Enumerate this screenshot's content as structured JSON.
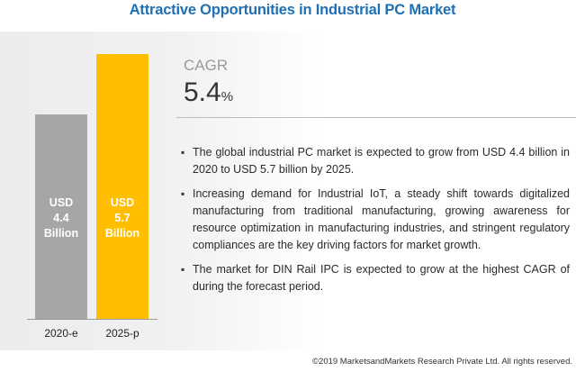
{
  "title": "Attractive Opportunities in Industrial PC Market",
  "cagr": {
    "label": "CAGR",
    "value": "5.4",
    "unit": "%"
  },
  "bullets": [
    "The global industrial PC market is expected to grow from USD 4.4 billion in 2020 to USD 5.7 billion by 2025.",
    "Increasing demand for Industrial IoT, a steady shift towards digitalized manufacturing from traditional manufacturing, growing awareness for resource optimization in manufacturing industries, and stringent regulatory compliances are the key driving factors for market growth.",
    "The market for DIN Rail IPC is expected to grow at the highest CAGR of during the forecast period."
  ],
  "copyright": "©2019 MarketsandMarkets Research Private Ltd. All rights reserved.",
  "colors": {
    "title": "#1f6fb2",
    "bar_2020": "#a6a6a6",
    "bar_2025": "#ffbf00"
  },
  "chart_data": {
    "type": "bar",
    "categories": [
      "2020-e",
      "2025-p"
    ],
    "values": [
      4.4,
      5.7
    ],
    "data_labels": [
      [
        "USD",
        "4.4",
        "Billion"
      ],
      [
        "USD",
        "5.7",
        "Billion"
      ]
    ],
    "unit": "USD Billion",
    "ylim": [
      0,
      5.7
    ],
    "grid": false,
    "legend": "none"
  }
}
